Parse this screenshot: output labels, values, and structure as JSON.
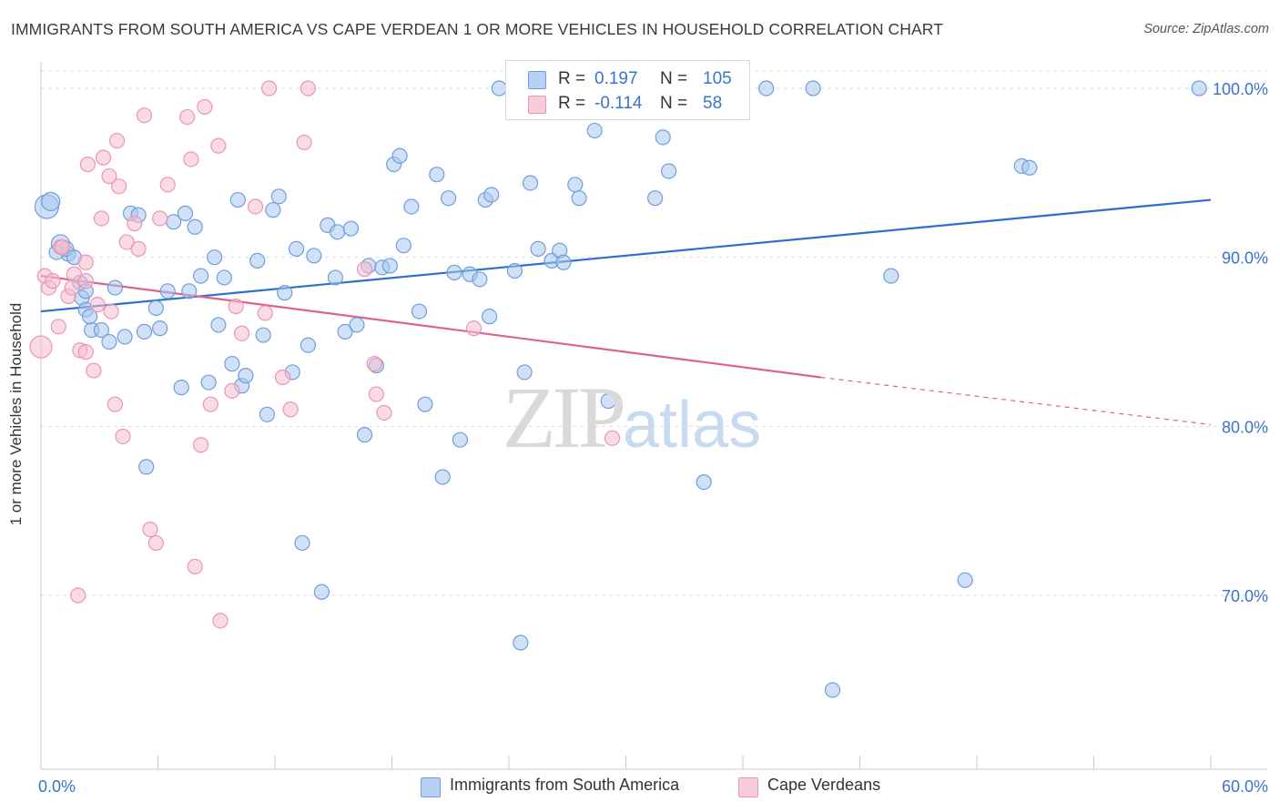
{
  "header": {
    "title": "IMMIGRANTS FROM SOUTH AMERICA VS CAPE VERDEAN 1 OR MORE VEHICLES IN HOUSEHOLD CORRELATION CHART",
    "source": "Source: ZipAtlas.com"
  },
  "legend_top": {
    "row1": {
      "r_label": "R =",
      "r_value": "0.197",
      "n_label": "N =",
      "n_value": "105"
    },
    "row2": {
      "r_label": "R =",
      "r_value": "-0.114",
      "n_label": "N =",
      "n_value": "58"
    }
  },
  "watermark": {
    "zip": "ZIP",
    "atlas": "atlas"
  },
  "colors": {
    "blue_fill": "#a9c6ee",
    "blue_stroke": "#6f9fdc",
    "blue_line": "#2c6fcf",
    "pink_fill": "#f6bdd0",
    "pink_stroke": "#ec95b2",
    "pink_line": "#e0608e",
    "grid": "#dedede",
    "tick_label": "#3a74cc"
  },
  "chart_data": {
    "type": "scatter",
    "title": "IMMIGRANTS FROM SOUTH AMERICA VS CAPE VERDEAN 1 OR MORE VEHICLES IN HOUSEHOLD CORRELATION CHART",
    "xlabel": "",
    "ylabel": "1 or more Vehicles in Household",
    "xlim": [
      0,
      60
    ],
    "ylim": [
      61,
      101.5
    ],
    "x_tick_labels": [
      "0.0%",
      "60.0%"
    ],
    "y_ticks": [
      70,
      80,
      90,
      100
    ],
    "y_tick_labels": [
      "70.0%",
      "80.0%",
      "90.0%",
      "100.0%"
    ],
    "grid": true,
    "legend_position": "top-center",
    "series": [
      {
        "name": "Immigrants from South America",
        "color": "#a9c6ee",
        "R": 0.197,
        "N": 105,
        "trend": {
          "x0": 0,
          "y0": 86.8,
          "x1": 60,
          "y1": 93.4
        },
        "points": [
          [
            0.3,
            93.0,
            13
          ],
          [
            0.5,
            93.3,
            10
          ],
          [
            1.0,
            90.8,
            10
          ],
          [
            1.4,
            90.2,
            8
          ],
          [
            1.3,
            90.5,
            8
          ],
          [
            2.0,
            88.5,
            8
          ],
          [
            2.1,
            87.6,
            8
          ],
          [
            2.3,
            88.0,
            8
          ],
          [
            2.3,
            86.9,
            8
          ],
          [
            2.6,
            85.7,
            8
          ],
          [
            3.1,
            85.7,
            8
          ],
          [
            3.5,
            85.0,
            8
          ],
          [
            3.8,
            88.2,
            8
          ],
          [
            4.3,
            85.3,
            8
          ],
          [
            4.6,
            92.6,
            8
          ],
          [
            5.3,
            85.6,
            8
          ],
          [
            5.4,
            77.6,
            8
          ],
          [
            5.9,
            87.0,
            8
          ],
          [
            6.1,
            85.8,
            8
          ],
          [
            6.5,
            88.0,
            8
          ],
          [
            6.8,
            92.1,
            8
          ],
          [
            7.2,
            82.3,
            8
          ],
          [
            7.4,
            92.6,
            8
          ],
          [
            7.6,
            88.0,
            8
          ],
          [
            7.9,
            91.8,
            8
          ],
          [
            8.2,
            88.9,
            8
          ],
          [
            8.6,
            82.6,
            8
          ],
          [
            8.9,
            90.0,
            8
          ],
          [
            9.1,
            86.0,
            8
          ],
          [
            9.4,
            88.8,
            8
          ],
          [
            9.8,
            83.7,
            8
          ],
          [
            10.1,
            93.4,
            8
          ],
          [
            10.3,
            82.4,
            8
          ],
          [
            10.5,
            83.0,
            8
          ],
          [
            11.1,
            89.8,
            8
          ],
          [
            11.4,
            85.4,
            8
          ],
          [
            11.6,
            80.7,
            8
          ],
          [
            11.9,
            92.8,
            8
          ],
          [
            12.2,
            93.6,
            8
          ],
          [
            12.5,
            87.9,
            8
          ],
          [
            12.9,
            83.2,
            8
          ],
          [
            13.1,
            90.5,
            8
          ],
          [
            13.4,
            73.1,
            8
          ],
          [
            13.7,
            84.8,
            8
          ],
          [
            14.0,
            90.1,
            8
          ],
          [
            14.4,
            70.2,
            8
          ],
          [
            14.7,
            91.9,
            8
          ],
          [
            15.1,
            88.8,
            8
          ],
          [
            15.2,
            91.5,
            8
          ],
          [
            15.6,
            85.6,
            8
          ],
          [
            15.9,
            91.7,
            8
          ],
          [
            16.2,
            86.0,
            8
          ],
          [
            16.6,
            79.5,
            8
          ],
          [
            16.8,
            89.5,
            8
          ],
          [
            17.2,
            83.6,
            8
          ],
          [
            17.5,
            89.4,
            8
          ],
          [
            17.9,
            89.5,
            8
          ],
          [
            18.1,
            95.5,
            8
          ],
          [
            18.4,
            96.0,
            8
          ],
          [
            18.6,
            90.7,
            8
          ],
          [
            19.0,
            93.0,
            8
          ],
          [
            19.4,
            86.8,
            8
          ],
          [
            19.7,
            81.3,
            8
          ],
          [
            20.3,
            94.9,
            8
          ],
          [
            20.6,
            77.0,
            8
          ],
          [
            20.9,
            93.5,
            8
          ],
          [
            21.2,
            89.1,
            8
          ],
          [
            21.5,
            79.2,
            8
          ],
          [
            22.0,
            89.0,
            8
          ],
          [
            22.5,
            88.7,
            8
          ],
          [
            22.8,
            93.4,
            8
          ],
          [
            23.1,
            93.7,
            8
          ],
          [
            23.0,
            86.5,
            8
          ],
          [
            23.5,
            100.0,
            8
          ],
          [
            24.3,
            89.2,
            8
          ],
          [
            24.6,
            67.2,
            8
          ],
          [
            24.8,
            83.2,
            8
          ],
          [
            25.1,
            94.4,
            8
          ],
          [
            25.5,
            90.5,
            8
          ],
          [
            26.2,
            89.8,
            8
          ],
          [
            26.6,
            90.4,
            8
          ],
          [
            26.8,
            89.7,
            8
          ],
          [
            27.2,
            100.0,
            8
          ],
          [
            27.4,
            94.3,
            8
          ],
          [
            27.6,
            93.5,
            8
          ],
          [
            28.4,
            97.5,
            8
          ],
          [
            29.1,
            81.5,
            8
          ],
          [
            31.5,
            93.5,
            8
          ],
          [
            31.9,
            97.1,
            8
          ],
          [
            32.2,
            95.1,
            8
          ],
          [
            32.4,
            100.0,
            8
          ],
          [
            34.0,
            76.7,
            8
          ],
          [
            35.7,
            100.0,
            8
          ],
          [
            37.2,
            100.0,
            8
          ],
          [
            39.6,
            100.0,
            8
          ],
          [
            40.6,
            64.4,
            8
          ],
          [
            43.6,
            88.9,
            8
          ],
          [
            47.4,
            70.9,
            8
          ],
          [
            50.3,
            95.4,
            8
          ],
          [
            50.7,
            95.3,
            8
          ],
          [
            59.4,
            100.0,
            8
          ],
          [
            0.8,
            90.3,
            8
          ],
          [
            1.7,
            90.0,
            8
          ],
          [
            2.5,
            86.5,
            8
          ],
          [
            5.0,
            92.5,
            8
          ]
        ]
      },
      {
        "name": "Cape Verdeans",
        "color": "#f6bdd0",
        "R": -0.114,
        "N": 58,
        "trend": {
          "x0": 0,
          "y0": 88.9,
          "x1": 40,
          "y1": 82.9,
          "dashed_to": {
            "x": 60,
            "y": 80.1
          }
        },
        "points": [
          [
            0.0,
            84.7,
            12
          ],
          [
            0.2,
            88.9,
            8
          ],
          [
            0.4,
            88.2,
            8
          ],
          [
            0.6,
            88.6,
            8
          ],
          [
            0.9,
            85.9,
            8
          ],
          [
            1.0,
            90.6,
            8
          ],
          [
            1.1,
            90.6,
            8
          ],
          [
            1.4,
            87.7,
            8
          ],
          [
            1.6,
            88.2,
            8
          ],
          [
            1.7,
            89.0,
            8
          ],
          [
            1.9,
            70.0,
            8
          ],
          [
            2.0,
            84.5,
            8
          ],
          [
            2.3,
            84.4,
            8
          ],
          [
            2.3,
            89.7,
            8
          ],
          [
            2.4,
            95.5,
            8
          ],
          [
            2.7,
            83.3,
            8
          ],
          [
            2.9,
            87.2,
            8
          ],
          [
            3.1,
            92.3,
            8
          ],
          [
            3.2,
            95.9,
            8
          ],
          [
            3.5,
            94.8,
            8
          ],
          [
            3.6,
            86.8,
            8
          ],
          [
            3.8,
            81.3,
            8
          ],
          [
            3.9,
            96.9,
            8
          ],
          [
            4.0,
            94.2,
            8
          ],
          [
            4.2,
            79.4,
            8
          ],
          [
            4.4,
            90.9,
            8
          ],
          [
            4.8,
            92.0,
            8
          ],
          [
            5.0,
            90.5,
            8
          ],
          [
            5.3,
            98.4,
            8
          ],
          [
            5.6,
            73.9,
            8
          ],
          [
            5.9,
            73.1,
            8
          ],
          [
            6.1,
            92.3,
            8
          ],
          [
            6.5,
            94.3,
            8
          ],
          [
            7.5,
            98.3,
            8
          ],
          [
            7.7,
            95.8,
            8
          ],
          [
            7.9,
            71.7,
            8
          ],
          [
            8.2,
            78.9,
            8
          ],
          [
            8.4,
            98.9,
            8
          ],
          [
            8.7,
            81.3,
            8
          ],
          [
            9.1,
            96.6,
            8
          ],
          [
            9.2,
            68.5,
            8
          ],
          [
            9.8,
            82.1,
            8
          ],
          [
            10.0,
            87.1,
            8
          ],
          [
            10.3,
            85.5,
            8
          ],
          [
            11.0,
            93.0,
            8
          ],
          [
            11.5,
            86.7,
            8
          ],
          [
            11.7,
            100.0,
            8
          ],
          [
            12.4,
            82.9,
            8
          ],
          [
            12.8,
            81.0,
            8
          ],
          [
            13.5,
            96.8,
            8
          ],
          [
            13.7,
            100.0,
            8
          ],
          [
            16.6,
            89.3,
            8
          ],
          [
            17.1,
            83.7,
            8
          ],
          [
            17.6,
            80.8,
            8
          ],
          [
            17.2,
            81.9,
            8
          ],
          [
            22.2,
            85.8,
            8
          ],
          [
            29.3,
            79.3,
            8
          ],
          [
            2.3,
            88.6,
            8
          ]
        ]
      }
    ]
  }
}
